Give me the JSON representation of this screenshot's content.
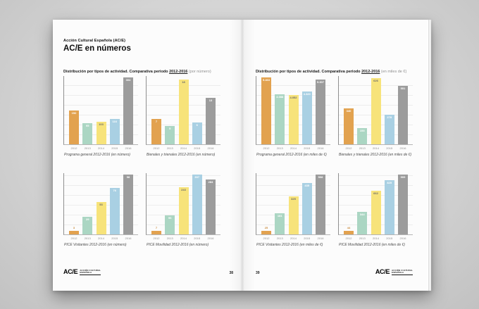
{
  "pages": {
    "left": {
      "kicker": "Acción Cultural Española (AC/E)",
      "title": "AC/E en números",
      "section_title": "Distribución por tipos de actividad. Comparativa periodo",
      "section_period": "2012-2016",
      "section_note": "(por número)",
      "page_number": "38",
      "footer_logo": "AC/E",
      "footer_logo_sub1": "ACCIÓN CULTURAL",
      "footer_logo_sub2": "ESPAÑOLA"
    },
    "right": {
      "section_title": "Distribución por tipos de actividad. Comparativa periodo",
      "section_period": "2012-2016",
      "section_note": "(en miles de €)",
      "page_number": "39",
      "footer_logo": "AC/E",
      "footer_logo_sub1": "ACCIÓN CULTURAL",
      "footer_logo_sub2": "ESPAÑOLA"
    }
  },
  "palette": {
    "orange": "#E2A24F",
    "teal": "#ABD6C3",
    "yellow": "#F7E37A",
    "blue": "#A9D0E3",
    "gray": "#9C9C9C",
    "label_light": "#FFFFFF",
    "label_dark": "#6B6B6B",
    "tiny_label": "#C98B3F",
    "axis": "#8F8F8F",
    "gridline": "#EDEDED"
  },
  "palette_order": [
    "orange",
    "teal",
    "yellow",
    "blue",
    "gray"
  ],
  "chart_data": [
    {
      "type": "bar",
      "page": "left",
      "title": "Programa general 2012-2016 (en número)",
      "categories": [
        "2012",
        "2013",
        "2014",
        "2015",
        "2016"
      ],
      "values": [
        152,
        95,
        103,
        116,
        304
      ],
      "labels": [
        "152",
        "95",
        "103",
        "116",
        "304"
      ],
      "xlabel": "",
      "ylabel": "",
      "ymax": 310,
      "grid": true,
      "legend": "none"
    },
    {
      "type": "bar",
      "page": "left",
      "title": "Bienales y trienales 2012-2016 (en número)",
      "categories": [
        "2012",
        "2013",
        "2014",
        "2015",
        "2016"
      ],
      "values": [
        7,
        5,
        18,
        6,
        13
      ],
      "labels": [
        "7",
        "5",
        "18",
        "6",
        "13"
      ],
      "xlabel": "",
      "ylabel": "",
      "ymax": 19,
      "grid": true,
      "legend": "none"
    },
    {
      "type": "bar",
      "page": "left",
      "title": "PICE Visitantes 2012-2016 (en número)",
      "categories": [
        "2012",
        "2013",
        "2014",
        "2015",
        "2016"
      ],
      "values": [
        3,
        29,
        53,
        76,
        98
      ],
      "labels": [
        "3",
        "29",
        "53",
        "76",
        "98"
      ],
      "xlabel": "",
      "ylabel": "",
      "ymax": 100,
      "grid": true,
      "legend": "none"
    },
    {
      "type": "bar",
      "page": "left",
      "title": "PICE Movilidad 2012-2016 (en número)",
      "categories": [
        "2012",
        "2013",
        "2014",
        "2015",
        "2016"
      ],
      "values": [
        7,
        96,
        243,
        307,
        284
      ],
      "labels": [
        "7",
        "96",
        "243",
        "307",
        "284"
      ],
      "xlabel": "",
      "ylabel": "",
      "ymax": 315,
      "grid": true,
      "legend": "none"
    },
    {
      "type": "bar",
      "page": "right",
      "title": "Programa general 2012-2016 (en miles de €)",
      "categories": [
        "2012",
        "2013",
        "2014",
        "2015",
        "2016"
      ],
      "values": [
        5463,
        4088,
        4052,
        4320,
        5307
      ],
      "labels": [
        "5.463",
        "4.088",
        "4.052",
        "4.320",
        "5.307"
      ],
      "xlabel": "",
      "ylabel": "",
      "ymax": 5600,
      "grid": true,
      "legend": "none"
    },
    {
      "type": "bar",
      "page": "right",
      "title": "Bienales y trienales 2012-2016 (en miles de €)",
      "categories": [
        "2012",
        "2013",
        "2014",
        "2015",
        "2016"
      ],
      "values": [
        340,
        153,
        626,
        278,
        551
      ],
      "labels": [
        "340",
        "153",
        "626",
        "278",
        "551"
      ],
      "xlabel": "",
      "ylabel": "",
      "ymax": 645,
      "grid": true,
      "legend": "none"
    },
    {
      "type": "bar",
      "page": "right",
      "title": "PICE Visitantes 2012-2016 (en miles de €)",
      "categories": [
        "2012",
        "2013",
        "2014",
        "2015",
        "2016"
      ],
      "values": [
        25,
        181,
        325,
        435,
        508
      ],
      "labels": [
        "25",
        "181",
        "325",
        "435",
        "508"
      ],
      "xlabel": "",
      "ylabel": "",
      "ymax": 520,
      "grid": true,
      "legend": "none"
    },
    {
      "type": "bar",
      "page": "right",
      "title": "PICE Movilidad 2012-2016 (en miles de €)",
      "categories": [
        "2012",
        "2013",
        "2014",
        "2015",
        "2016"
      ],
      "values": [
        44,
        344,
        662,
        825,
        909
      ],
      "labels": [
        "44",
        "344",
        "662",
        "825",
        "909"
      ],
      "xlabel": "",
      "ylabel": "",
      "ymax": 930,
      "grid": true,
      "legend": "none"
    }
  ]
}
